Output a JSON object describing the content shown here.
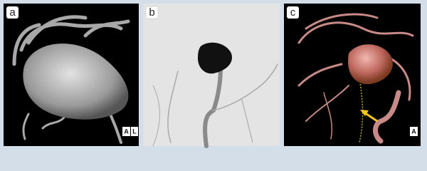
{
  "panels": [
    {
      "label": "a",
      "markers": [
        "A",
        "L"
      ]
    },
    {
      "label": "b"
    },
    {
      "label": "c",
      "markers": [
        "A"
      ]
    }
  ]
}
